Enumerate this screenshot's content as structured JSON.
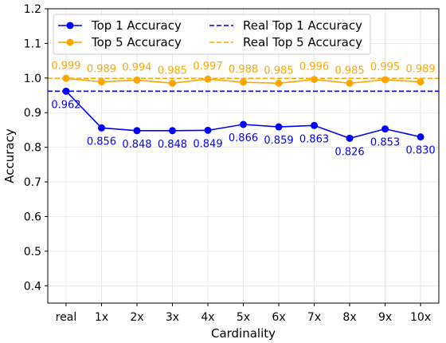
{
  "chart_data": {
    "type": "line",
    "title": "",
    "xlabel": "Cardinality",
    "ylabel": "Accuracy",
    "categories": [
      "real",
      "1x",
      "2x",
      "3x",
      "4x",
      "5x",
      "6x",
      "7x",
      "8x",
      "9x",
      "10x"
    ],
    "ylim": [
      0.35,
      1.2
    ],
    "yticks": [
      0.4,
      0.5,
      0.6,
      0.7,
      0.8,
      0.9,
      1.0,
      1.1,
      1.2
    ],
    "ytick_labels": [
      "0.4",
      "0.5",
      "0.6",
      "0.7",
      "0.8",
      "0.9",
      "1.0",
      "1.1",
      "1.2"
    ],
    "grid": true,
    "legend_position": "top-left",
    "series": [
      {
        "name": "Top 1 Accuracy",
        "color": "#0000ff",
        "style": "solid-marker",
        "values": [
          0.962,
          0.856,
          0.848,
          0.848,
          0.849,
          0.866,
          0.859,
          0.863,
          0.826,
          0.853,
          0.83
        ],
        "value_labels": [
          "0.962",
          "0.856",
          "0.848",
          "0.848",
          "0.849",
          "0.866",
          "0.859",
          "0.863",
          "0.826",
          "0.853",
          "0.830"
        ],
        "label_position": "below"
      },
      {
        "name": "Top 5 Accuracy",
        "color": "#ffa500",
        "style": "solid-marker",
        "values": [
          0.999,
          0.989,
          0.994,
          0.985,
          0.997,
          0.988,
          0.985,
          0.996,
          0.985,
          0.995,
          0.989
        ],
        "value_labels": [
          "0.999",
          "0.989",
          "0.994",
          "0.985",
          "0.997",
          "0.988",
          "0.985",
          "0.996",
          "0.985",
          "0.995",
          "0.989"
        ],
        "label_position": "above"
      }
    ],
    "reference_lines": [
      {
        "name": "Real Top 1 Accuracy",
        "value": 0.962,
        "color": "#0000ff",
        "style": "dashed"
      },
      {
        "name": "Real Top 5 Accuracy",
        "value": 0.999,
        "color": "#ffa500",
        "style": "dashed"
      }
    ]
  }
}
